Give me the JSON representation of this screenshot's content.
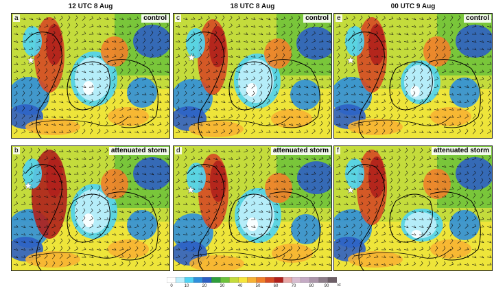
{
  "columns": [
    "12 UTC 8 Aug",
    "18 UTC 8 Aug",
    "00 UTC 9 Aug"
  ],
  "panels": [
    {
      "letter": "a",
      "tag": "control"
    },
    {
      "letter": "c",
      "tag": "control"
    },
    {
      "letter": "e",
      "tag": "control"
    },
    {
      "letter": "b",
      "tag": "attenuated storm"
    },
    {
      "letter": "d",
      "tag": "attenuated storm"
    },
    {
      "letter": "f",
      "tag": "attenuated storm"
    }
  ],
  "colorbar": {
    "ticks": [
      "0",
      "10",
      "20",
      "30",
      "40",
      "50",
      "60",
      "70",
      "80",
      "90"
    ],
    "unit": "kt",
    "colors": [
      "#ffffff",
      "#bfeffc",
      "#4fd3f4",
      "#2f8fdc",
      "#2d5fc4",
      "#2e9e3c",
      "#6cc23a",
      "#c4dc3c",
      "#f6e63a",
      "#f7b233",
      "#f07f2a",
      "#d64a24",
      "#b0201c",
      "#e8a8a8",
      "#d8bcd0",
      "#c4aac4",
      "#aa94a8",
      "#8c7c88",
      "#6c5e66"
    ]
  }
}
